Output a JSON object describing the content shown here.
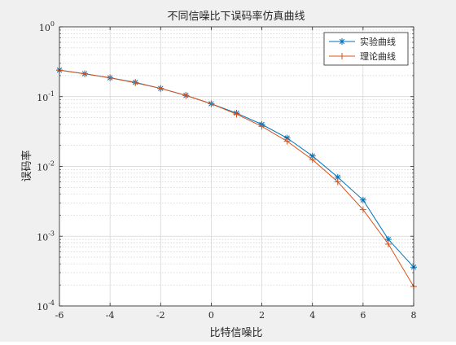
{
  "chart_data": {
    "type": "line",
    "title": "不同信噪比下误码率仿真曲线",
    "xlabel": "比特信噪比",
    "ylabel": "误码率",
    "xlim": [
      -6,
      8
    ],
    "ylim": [
      0.0001,
      1
    ],
    "yscale": "log",
    "grid": true,
    "minor_grid": true,
    "legend_position": "top-right",
    "x_ticks": [
      "-6",
      "-4",
      "-2",
      "0",
      "2",
      "4",
      "6",
      "8"
    ],
    "x": [
      -6,
      -5,
      -4,
      -3,
      -2,
      -1,
      0,
      1,
      2,
      3,
      4,
      5,
      6,
      7,
      8
    ],
    "series": [
      {
        "name": "实验曲线",
        "color": "#0072bd",
        "marker": "asterisk",
        "values": [
          0.24,
          0.213,
          0.186,
          0.16,
          0.131,
          0.104,
          0.079,
          0.058,
          0.04,
          0.0255,
          0.0141,
          0.007,
          0.0033,
          0.0009,
          0.00036
        ]
      },
      {
        "name": "理论曲线",
        "color": "#d95319",
        "marker": "plus",
        "values": [
          0.239,
          0.212,
          0.186,
          0.158,
          0.131,
          0.104,
          0.079,
          0.056,
          0.0375,
          0.0229,
          0.0125,
          0.006,
          0.0024,
          0.00077,
          0.00019
        ]
      }
    ]
  }
}
